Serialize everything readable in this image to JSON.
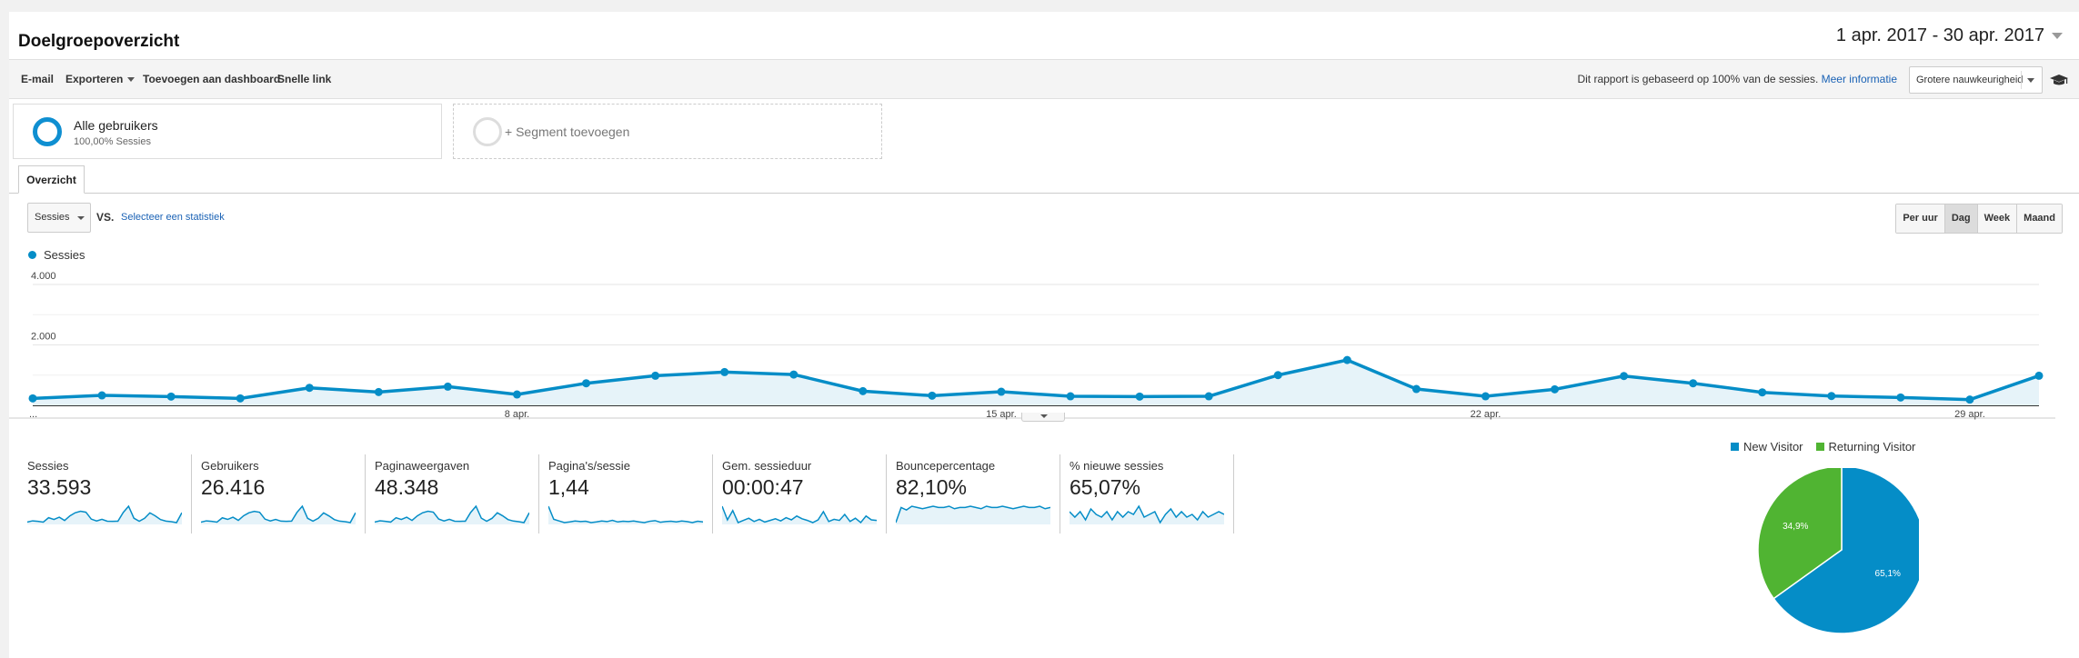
{
  "header": {
    "title": "Doelgroepoverzicht",
    "date_range": "1 apr. 2017 - 30 apr. 2017"
  },
  "toolbar": {
    "email": "E-mail",
    "export": "Exporteren",
    "add_dashboard": "Toevoegen aan dashboard",
    "quick_link": "Snelle link",
    "sampling_note": "Dit rapport is gebaseerd op 100% van de sessies.",
    "more_info": "Meer informatie",
    "precision": "Grotere nauwkeurigheid"
  },
  "segments": {
    "active_title": "Alle gebruikers",
    "active_sub": "100,00% Sessies",
    "add_label": "+ Segment toevoegen"
  },
  "tabs": {
    "overview": "Overzicht"
  },
  "controls": {
    "metric": "Sessies",
    "vs": "VS.",
    "select_stat": "Selecteer een statistiek",
    "granularity": [
      "Per uur",
      "Dag",
      "Week",
      "Maand"
    ],
    "granularity_active": "Dag"
  },
  "chart_data": [
    {
      "type": "area",
      "series": [
        {
          "name": "Sessies",
          "color": "#058dc7",
          "values": [
            230,
            330,
            290,
            230,
            580,
            440,
            620,
            360,
            730,
            980,
            1100,
            1020,
            470,
            320,
            450,
            300,
            290,
            300,
            1000,
            1500,
            540,
            300,
            530,
            970,
            730,
            430,
            310,
            260,
            190,
            980
          ]
        }
      ],
      "x": [
        "1 apr.",
        "2 apr.",
        "3 apr.",
        "4 apr.",
        "5 apr.",
        "6 apr.",
        "7 apr.",
        "8 apr.",
        "9 apr.",
        "10 apr.",
        "11 apr.",
        "12 apr.",
        "13 apr.",
        "14 apr.",
        "15 apr.",
        "16 apr.",
        "17 apr.",
        "18 apr.",
        "19 apr.",
        "20 apr.",
        "21 apr.",
        "22 apr.",
        "23 apr.",
        "24 apr.",
        "25 apr.",
        "26 apr.",
        "27 apr.",
        "28 apr.",
        "29 apr.",
        "30 apr."
      ],
      "x_tick_labels": [
        "...",
        "8 apr.",
        "15 apr.",
        "22 apr.",
        "29 apr."
      ],
      "y_tick_labels": [
        "4.000",
        "2.000"
      ],
      "ylim": [
        0,
        4000
      ],
      "legend": "top-left",
      "grid": true
    },
    {
      "type": "pie",
      "slices": [
        {
          "name": "New Visitor",
          "value": 65.1,
          "label": "65,1%",
          "color": "#058dc7"
        },
        {
          "name": "Returning Visitor",
          "value": 34.9,
          "label": "34,9%",
          "color": "#50b432"
        }
      ],
      "legend": "top"
    }
  ],
  "kpis": [
    {
      "label": "Sessies",
      "value": "33.593",
      "spark": [
        230,
        330,
        290,
        230,
        580,
        440,
        620,
        360,
        730,
        980,
        1100,
        1020,
        470,
        320,
        450,
        300,
        290,
        300,
        1000,
        1500,
        540,
        300,
        530,
        970,
        730,
        430,
        310,
        260,
        190,
        980
      ]
    },
    {
      "label": "Gebruikers",
      "value": "26.416",
      "spark": [
        180,
        260,
        230,
        180,
        450,
        350,
        490,
        290,
        580,
        770,
        860,
        800,
        370,
        250,
        350,
        240,
        230,
        240,
        790,
        1180,
        420,
        240,
        420,
        760,
        570,
        340,
        240,
        210,
        150,
        770
      ]
    },
    {
      "label": "Paginaweergaven",
      "value": "48.348",
      "spark": [
        330,
        480,
        420,
        330,
        830,
        630,
        890,
        520,
        1050,
        1410,
        1580,
        1470,
        680,
        460,
        650,
        430,
        420,
        430,
        1440,
        2160,
        780,
        430,
        760,
        1400,
        1050,
        620,
        450,
        370,
        270,
        1410
      ]
    },
    {
      "label": "Pagina's/sessie",
      "value": "1,44",
      "spark": [
        1.9,
        1.5,
        1.45,
        1.4,
        1.42,
        1.45,
        1.43,
        1.44,
        1.4,
        1.42,
        1.45,
        1.43,
        1.47,
        1.42,
        1.44,
        1.43,
        1.45,
        1.42,
        1.4,
        1.44,
        1.46,
        1.41,
        1.43,
        1.44,
        1.42,
        1.45,
        1.43,
        1.4,
        1.44,
        1.42
      ]
    },
    {
      "label": "Gem. sessieduur",
      "value": "00:00:47",
      "spark": [
        70,
        45,
        62,
        40,
        44,
        48,
        42,
        46,
        41,
        44,
        47,
        43,
        49,
        45,
        52,
        47,
        44,
        40,
        45,
        60,
        42,
        46,
        44,
        55,
        42,
        48,
        40,
        52,
        45,
        44
      ]
    },
    {
      "label": "Bouncepercentage",
      "value": "82,10%",
      "spark": [
        70,
        82,
        80,
        83,
        82,
        81,
        82,
        83,
        82,
        82,
        83,
        81,
        82,
        82,
        83,
        82,
        81,
        83,
        82,
        82,
        83,
        82,
        81,
        82,
        83,
        82,
        82,
        83,
        81,
        82
      ]
    },
    {
      "label": "% nieuwe sessies",
      "value": "65,07%",
      "spark": [
        66,
        64,
        66,
        63,
        67,
        65,
        64,
        66,
        63,
        66,
        64,
        66,
        65,
        68,
        64,
        65,
        66,
        62,
        65,
        67,
        64,
        66,
        64,
        65,
        63,
        66,
        64,
        65,
        66,
        65
      ]
    }
  ]
}
